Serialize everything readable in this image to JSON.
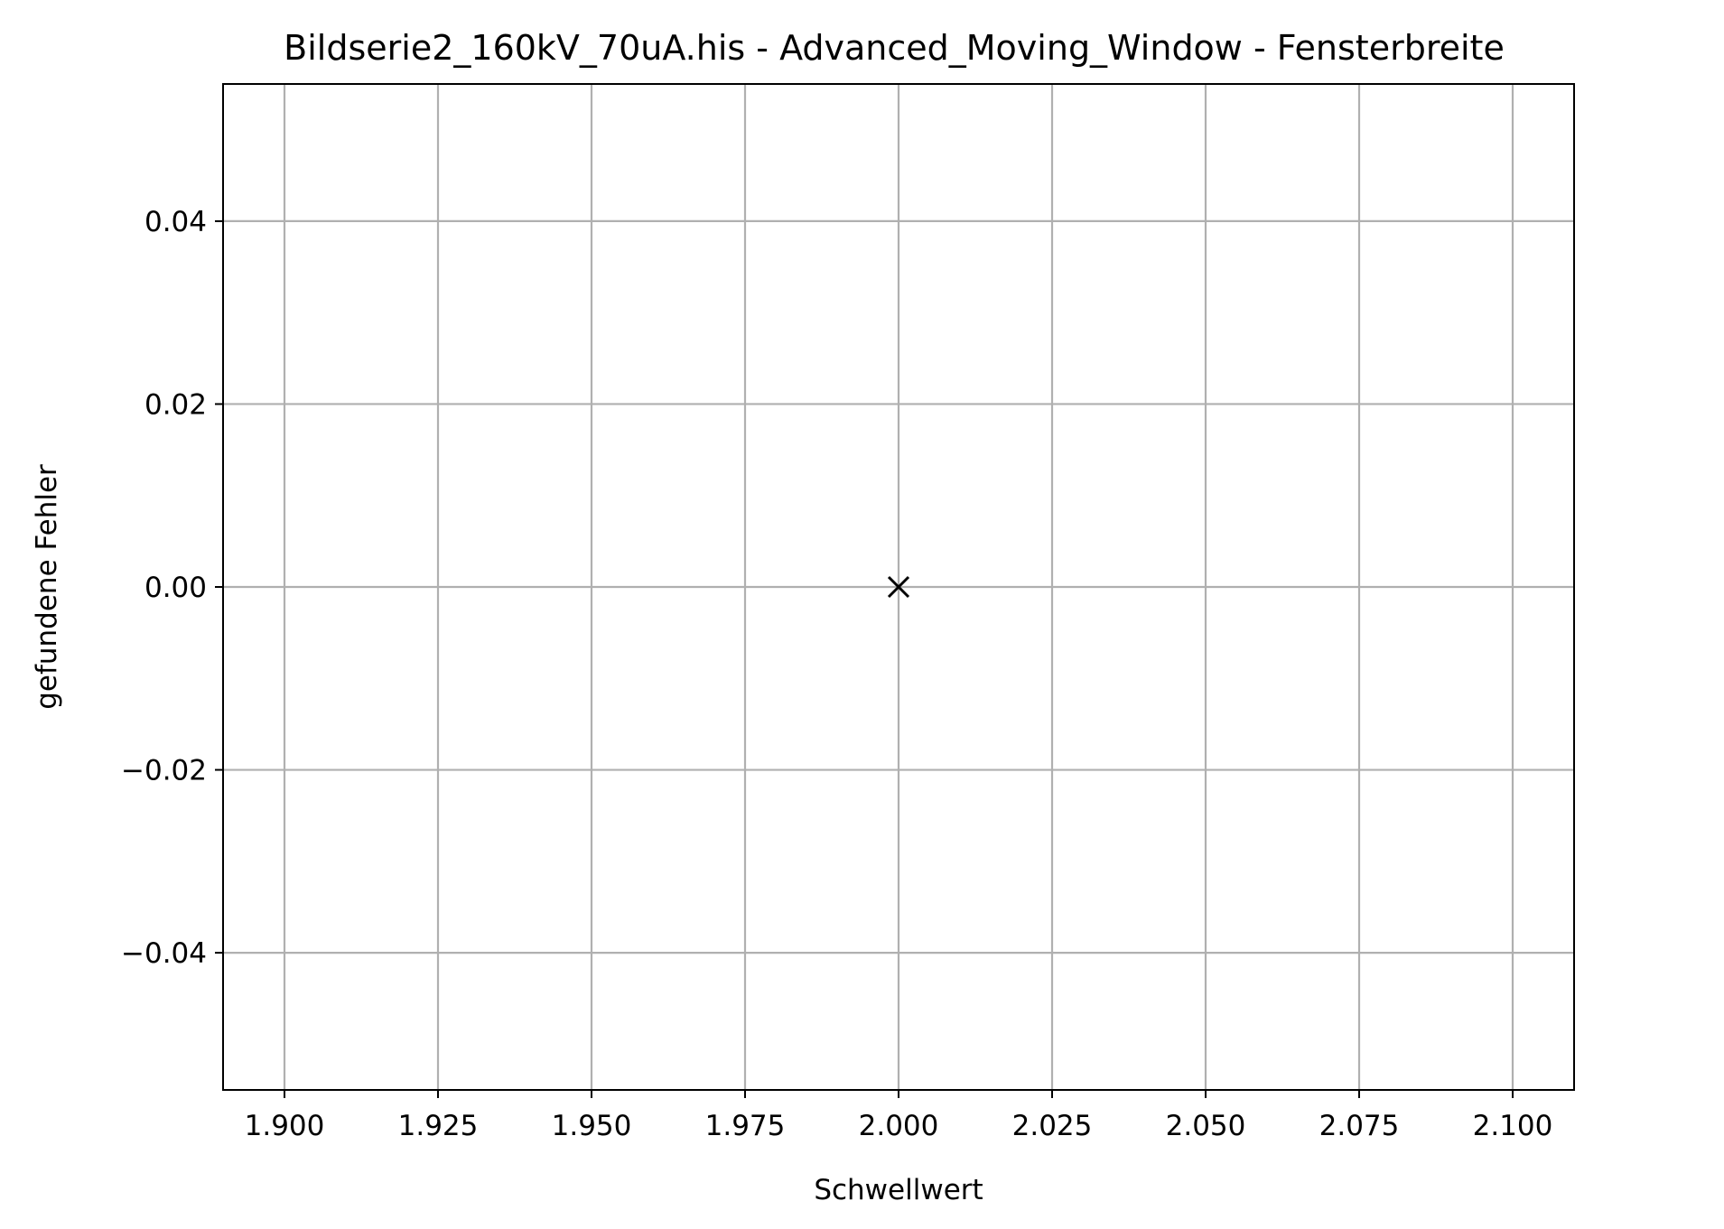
{
  "chart_data": {
    "type": "scatter",
    "title": "Bildserie2_160kV_70uA.his - Advanced_Moving_Window - Fensterbreite",
    "xlabel": "Schwellwert",
    "ylabel": "gefundene Fehler",
    "xlim": [
      1.89,
      2.11
    ],
    "ylim": [
      -0.055,
      0.055
    ],
    "xticks": [
      1.9,
      1.925,
      1.95,
      1.975,
      2.0,
      2.025,
      2.05,
      2.075,
      2.1
    ],
    "xtick_labels": [
      "1.900",
      "1.925",
      "1.950",
      "1.975",
      "2.000",
      "2.025",
      "2.050",
      "2.075",
      "2.100"
    ],
    "yticks": [
      -0.04,
      -0.02,
      0.0,
      0.02,
      0.04
    ],
    "ytick_labels": [
      "−0.04",
      "−0.02",
      "0.00",
      "0.02",
      "0.04"
    ],
    "grid": true,
    "series": [
      {
        "marker": "x",
        "color": "#000000",
        "points": [
          {
            "x": 2.0,
            "y": 0.0
          }
        ]
      }
    ]
  }
}
